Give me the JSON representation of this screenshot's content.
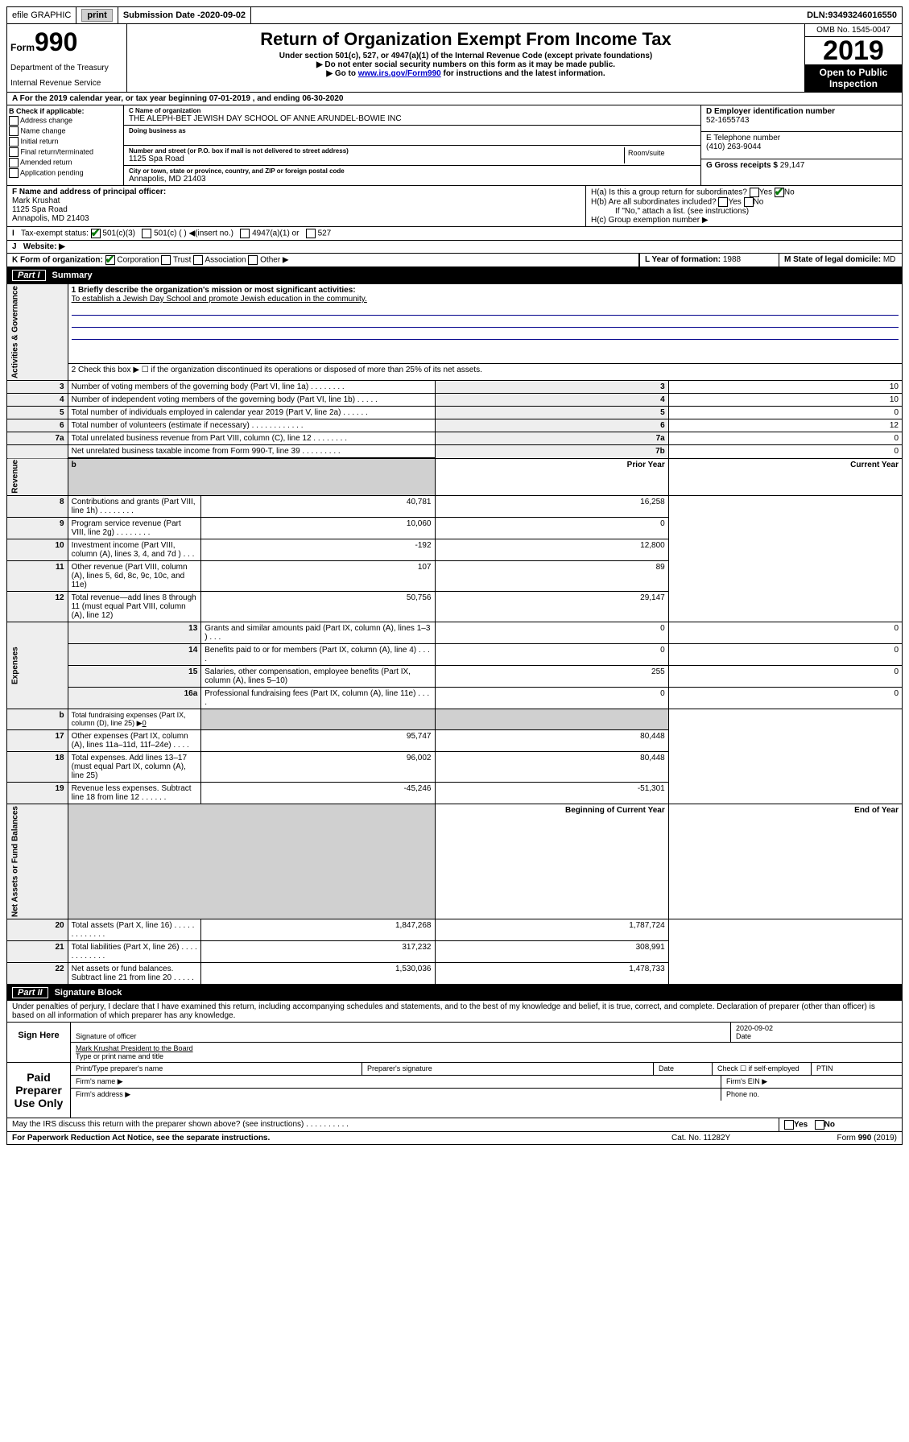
{
  "topbar": {
    "efile": "efile GRAPHIC",
    "print": "print",
    "sub_label": "Submission Date - ",
    "sub_date": "2020-09-02",
    "dln_label": "DLN: ",
    "dln": "93493246016550"
  },
  "header": {
    "form_prefix": "Form",
    "form_num": "990",
    "dept1": "Department of the Treasury",
    "dept2": "Internal Revenue Service",
    "title": "Return of Organization Exempt From Income Tax",
    "sub": "Under section 501(c), 527, or 4947(a)(1) of the Internal Revenue Code (except private foundations)",
    "arrow1": "▶ Do not enter social security numbers on this form as it may be made public.",
    "arrow2_pre": "▶ Go to ",
    "arrow2_link": "www.irs.gov/Form990",
    "arrow2_post": " for instructions and the latest information.",
    "omb": "OMB No. 1545-0047",
    "year": "2019",
    "open": "Open to Public Inspection"
  },
  "line_a": "A  For the 2019 calendar year, or tax year beginning 07-01-2019    , and ending 06-30-2020",
  "box_b": {
    "title": "B Check if applicable:",
    "opts": [
      "Address change",
      "Name change",
      "Initial return",
      "Final return/terminated",
      "Amended return",
      "Application pending"
    ]
  },
  "box_c": {
    "name_lbl": "C Name of organization",
    "name": "THE ALEPH-BET JEWISH DAY SCHOOL OF ANNE ARUNDEL-BOWIE INC",
    "dba_lbl": "Doing business as",
    "addr_lbl": "Number and street (or P.O. box if mail is not delivered to street address)",
    "addr": "1125 Spa Road",
    "room_lbl": "Room/suite",
    "city_lbl": "City or town, state or province, country, and ZIP or foreign postal code",
    "city": "Annapolis, MD  21403"
  },
  "box_d": {
    "lbl": "D Employer identification number",
    "val": "52-1655743"
  },
  "box_e": {
    "lbl": "E Telephone number",
    "val": "(410) 263-9044"
  },
  "box_g": {
    "lbl": "G Gross receipts $ ",
    "val": "29,147"
  },
  "box_f": {
    "lbl": "F Name and address of principal officer:",
    "name": "Mark Krushat",
    "addr1": "1125 Spa Road",
    "addr2": "Annapolis, MD  21403"
  },
  "box_h": {
    "a": "H(a)  Is this a group return for subordinates?",
    "b": "H(b)  Are all subordinates included?",
    "b_note": "If \"No,\" attach a list. (see instructions)",
    "c": "H(c)  Group exemption number ▶"
  },
  "tax_status": {
    "lbl": "Tax-exempt status:",
    "opt1": "501(c)(3)",
    "opt2": "501(c) (  ) ◀(insert no.)",
    "opt3": "4947(a)(1) or",
    "opt4": "527"
  },
  "box_i": "I",
  "website_lbl": "Website: ▶",
  "box_j": "J",
  "box_k": {
    "lbl": "K Form of organization:",
    "opts": [
      "Corporation",
      "Trust",
      "Association",
      "Other ▶"
    ]
  },
  "box_l": {
    "lbl": "L Year of formation: ",
    "val": "1988"
  },
  "box_m": {
    "lbl": "M State of legal domicile:",
    "val": "MD"
  },
  "part1": {
    "num": "Part I",
    "title": "Summary"
  },
  "summary": {
    "q1_lbl": "1  Briefly describe the organization's mission or most significant activities:",
    "q1_val": "To establish a Jewish Day School and promote Jewish education in the community.",
    "q2": "2  Check this box ▶ ☐  if the organization discontinued its operations or disposed of more than 25% of its net assets.",
    "rows_gov": [
      {
        "n": "3",
        "t": "Number of voting members of the governing body (Part VI, line 1a)   .    .    .    .    .    .    .    .",
        "box": "3",
        "v": "10"
      },
      {
        "n": "4",
        "t": "Number of independent voting members of the governing body (Part VI, line 1b)   .    .    .    .    .",
        "box": "4",
        "v": "10"
      },
      {
        "n": "5",
        "t": "Total number of individuals employed in calendar year 2019 (Part V, line 2a)   .    .    .    .    .    .",
        "box": "5",
        "v": "0"
      },
      {
        "n": "6",
        "t": "Total number of volunteers (estimate if necessary)   .    .    .    .    .    .    .    .    .    .    .    .",
        "box": "6",
        "v": "12"
      },
      {
        "n": "7a",
        "t": "Total unrelated business revenue from Part VIII, column (C), line 12   .    .    .    .    .    .    .    .",
        "box": "7a",
        "v": "0"
      },
      {
        "n": "",
        "t": "Net unrelated business taxable income from Form 990-T, line 39   .    .    .    .    .    .    .    .    .",
        "box": "7b",
        "v": "0"
      }
    ],
    "col_hdr_prior": "Prior Year",
    "col_hdr_curr": "Current Year",
    "rows_rev": [
      {
        "n": "8",
        "t": "Contributions and grants (Part VIII, line 1h)   .    .    .    .    .    .    .    .",
        "p": "40,781",
        "c": "16,258"
      },
      {
        "n": "9",
        "t": "Program service revenue (Part VIII, line 2g)   .    .    .    .    .    .    .    .",
        "p": "10,060",
        "c": "0"
      },
      {
        "n": "10",
        "t": "Investment income (Part VIII, column (A), lines 3, 4, and 7d )   .    .    .",
        "p": "-192",
        "c": "12,800"
      },
      {
        "n": "11",
        "t": "Other revenue (Part VIII, column (A), lines 5, 6d, 8c, 9c, 10c, and 11e)",
        "p": "107",
        "c": "89"
      },
      {
        "n": "12",
        "t": "Total revenue—add lines 8 through 11 (must equal Part VIII, column (A), line 12)",
        "p": "50,756",
        "c": "29,147"
      }
    ],
    "rows_exp": [
      {
        "n": "13",
        "t": "Grants and similar amounts paid (Part IX, column (A), lines 1–3 )   .    .    .",
        "p": "0",
        "c": "0"
      },
      {
        "n": "14",
        "t": "Benefits paid to or for members (Part IX, column (A), line 4)   .    .    .    .",
        "p": "0",
        "c": "0"
      },
      {
        "n": "15",
        "t": "Salaries, other compensation, employee benefits (Part IX, column (A), lines 5–10)",
        "p": "255",
        "c": "0"
      },
      {
        "n": "16a",
        "t": "Professional fundraising fees (Part IX, column (A), line 11e)   .    .    .    .",
        "p": "0",
        "c": "0"
      }
    ],
    "row_16b": {
      "n": "b",
      "t": "Total fundraising expenses (Part IX, column (D), line 25) ▶",
      "v": "0"
    },
    "rows_exp2": [
      {
        "n": "17",
        "t": "Other expenses (Part IX, column (A), lines 11a–11d, 11f–24e)   .    .    .    .",
        "p": "95,747",
        "c": "80,448"
      },
      {
        "n": "18",
        "t": "Total expenses. Add lines 13–17 (must equal Part IX, column (A), line 25)",
        "p": "96,002",
        "c": "80,448"
      },
      {
        "n": "19",
        "t": "Revenue less expenses. Subtract line 18 from line 12   .    .    .    .    .    .",
        "p": "-45,246",
        "c": "-51,301"
      }
    ],
    "col_hdr_beg": "Beginning of Current Year",
    "col_hdr_end": "End of Year",
    "rows_net": [
      {
        "n": "20",
        "t": "Total assets (Part X, line 16)   .    .    .    .    .    .    .    .    .    .    .    .    .",
        "p": "1,847,268",
        "c": "1,787,724"
      },
      {
        "n": "21",
        "t": "Total liabilities (Part X, line 26)   .    .    .    .    .    .    .    .    .    .    .    .",
        "p": "317,232",
        "c": "308,991"
      },
      {
        "n": "22",
        "t": "Net assets or fund balances. Subtract line 21 from line 20   .    .    .    .    .",
        "p": "1,530,036",
        "c": "1,478,733"
      }
    ],
    "side_gov": "Activities & Governance",
    "side_rev": "Revenue",
    "side_exp": "Expenses",
    "side_net": "Net Assets or Fund Balances"
  },
  "part2": {
    "num": "Part II",
    "title": "Signature Block"
  },
  "perjury": "Under penalties of perjury, I declare that I have examined this return, including accompanying schedules and statements, and to the best of my knowledge and belief, it is true, correct, and complete. Declaration of preparer (other than officer) is based on all information of which preparer has any knowledge.",
  "sign": {
    "here": "Sign Here",
    "sig_officer": "Signature of officer",
    "date": "2020-09-02",
    "date_lbl": "Date",
    "name_title": "Mark Krushat President to the Board",
    "name_lbl": "Type or print name and title"
  },
  "paid": {
    "title": "Paid Preparer Use Only",
    "c1": "Print/Type preparer's name",
    "c2": "Preparer's signature",
    "c3": "Date",
    "c4": "Check ☐ if self-employed",
    "c5": "PTIN",
    "firm_name": "Firm's name   ▶",
    "firm_ein": "Firm's EIN ▶",
    "firm_addr": "Firm's address ▶",
    "phone": "Phone no."
  },
  "discuss": "May the IRS discuss this return with the preparer shown above? (see instructions)   .    .    .    .    .    .    .    .    .    .",
  "yes": "Yes",
  "no": "No",
  "footer": {
    "pra": "For Paperwork Reduction Act Notice, see the separate instructions.",
    "cat": "Cat. No. 11282Y",
    "form": "Form 990 (2019)"
  }
}
